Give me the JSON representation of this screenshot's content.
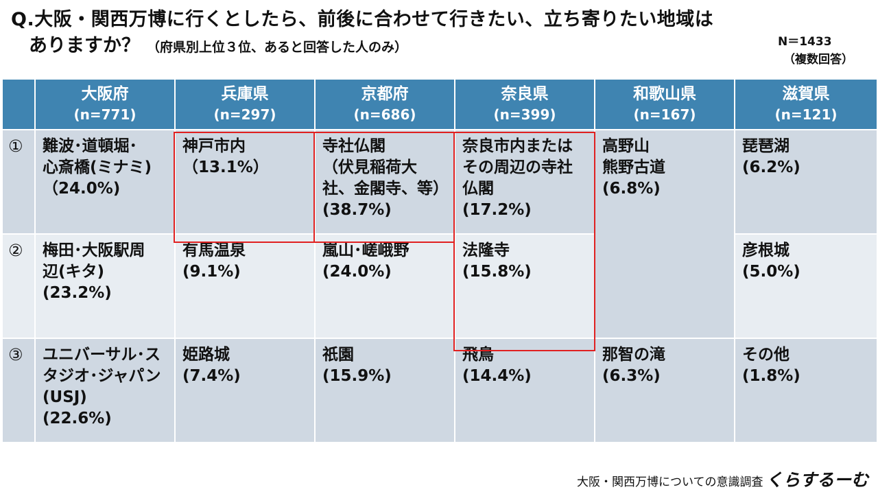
{
  "title": {
    "line1": "Q.大阪・関西万博に行くとしたら、前後に合わせて行きたい、立ち寄りたい地域は",
    "line2": "ありますか？",
    "note": "（府県別上位３位、あると回答した人のみ）"
  },
  "sample": {
    "n": "N＝1433",
    "multi": "（複数回答）"
  },
  "table": {
    "headers": [
      {
        "name": "大阪府",
        "count": "(n=771)"
      },
      {
        "name": "兵庫県",
        "count": "(n=297)"
      },
      {
        "name": "京都府",
        "count": "(n=686)"
      },
      {
        "name": "奈良県",
        "count": "(n=399)"
      },
      {
        "name": "和歌山県",
        "count": "(n=167)"
      },
      {
        "name": "滋賀県",
        "count": "(n=121)"
      }
    ],
    "ranks": [
      "①",
      "②",
      "③"
    ],
    "rows": [
      {
        "osaka": {
          "a": "難波･道頓堀･",
          "b": "心斎橋(ミナミ)",
          "pct": "（24.0%)"
        },
        "hyogo": {
          "a": "神戸市内",
          "pct": "（13.1%）"
        },
        "kyoto": {
          "a": "寺社仏閣",
          "b": "（伏見稲荷大",
          "c": "社、金閣寺、等）",
          "pct": "(38.7%)"
        },
        "nara": {
          "a": "奈良市内または",
          "b": "その周辺の寺社",
          "c": "仏閣",
          "pct": "(17.2%)"
        },
        "wakayama": {
          "a": "高野山",
          "b": "熊野古道",
          "pct": "(6.8%)"
        },
        "shiga": {
          "a": "琵琶湖",
          "pct": "(6.2%)"
        }
      },
      {
        "osaka": {
          "a": "梅田･大阪駅周",
          "b": "辺(キタ)",
          "pct": "(23.2%)"
        },
        "hyogo": {
          "a": "有馬温泉",
          "pct": "(9.1%)"
        },
        "kyoto": {
          "a": "嵐山･嵯峨野",
          "pct": "(24.0%)"
        },
        "nara": {
          "a": "法隆寺",
          "pct": "(15.8%)"
        },
        "shiga": {
          "a": "彦根城",
          "pct": "(5.0%)"
        }
      },
      {
        "osaka": {
          "a": "ユニバーサル･ス",
          "b": "タジオ･ジャパン",
          "c": "(USJ)",
          "pct": "(22.6%)"
        },
        "hyogo": {
          "a": "姫路城",
          "pct": "(7.4%)"
        },
        "kyoto": {
          "a": "祇園",
          "pct": "(15.9%)"
        },
        "nara": {
          "a": "飛鳥",
          "pct": "(14.4%)"
        },
        "wakayama": {
          "a": "那智の滝",
          "pct": "(6.3%)"
        },
        "shiga": {
          "a": "その他",
          "pct": "(1.8%)"
        }
      }
    ]
  },
  "footer": {
    "survey": "大阪・関西万博についての意識調査",
    "brand": "くらするーむ"
  },
  "colors": {
    "header_bg": "#3f84b1",
    "row_dark": "#cfd8e2",
    "row_light": "#e8edf2",
    "highlight": "#e02020"
  }
}
